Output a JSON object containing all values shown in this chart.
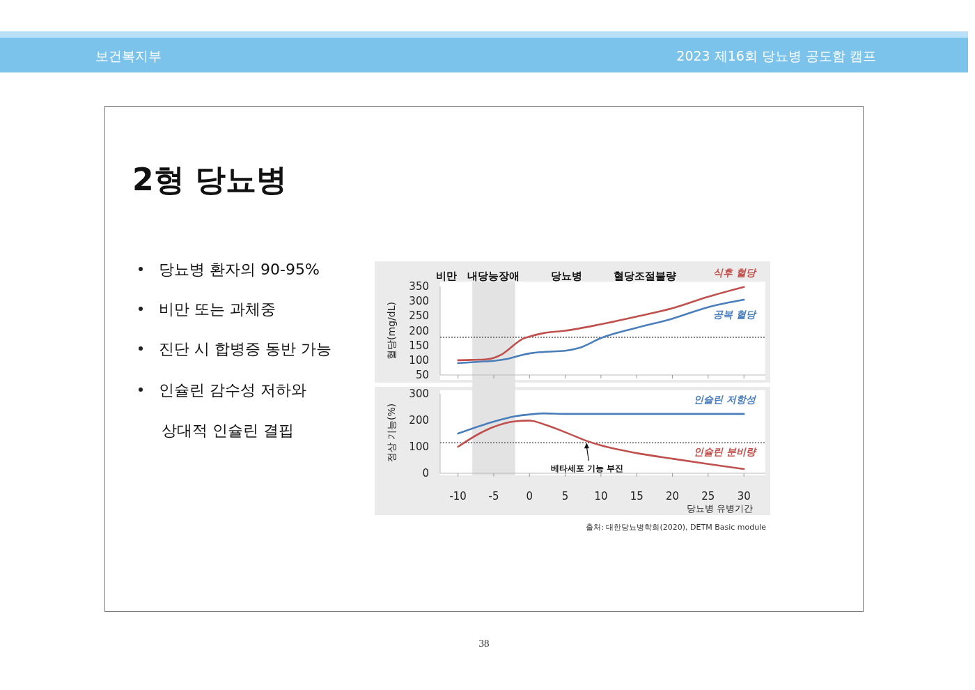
{
  "chart_data": [
    {
      "type": "line",
      "title": "2형 당뇨병",
      "ylabel": "혈당(mg/dL)",
      "xlim": [
        -12.5,
        33
      ],
      "xticks": [
        {
          "value": -10,
          "label": null
        },
        {
          "value": -5,
          "label": null
        },
        {
          "value": 0,
          "label": null
        },
        {
          "value": 5,
          "label": null
        },
        {
          "value": 10,
          "label": null
        },
        {
          "value": 15,
          "label": null
        },
        {
          "value": 20,
          "label": null
        },
        {
          "value": 25,
          "label": null
        },
        {
          "value": 30,
          "label": null
        }
      ],
      "ylim": [
        50,
        350
      ],
      "yticks": [
        50,
        100,
        150,
        200,
        250,
        300,
        350
      ],
      "tick_labels": "y",
      "grid": false,
      "marker": "none",
      "line_style": "solid",
      "annotations": [
        "보건복지부",
        "2023 제16회 당뇨병 공도함 캠프",
        "당뇨병 환자의 90-95%",
        "비만 또는 과체중",
        "진단 시 합병증 동반 가능",
        "인슐린 감수성 저하와",
        "상대적 인슐린 결핍",
        "38",
        "비만",
        "내당능장애",
        "당뇨병",
        "혈당조절불량"
      ],
      "bands": [
        {
          "axis": "x",
          "from": -8,
          "to": -2,
          "color": "#e3e3e3"
        }
      ],
      "ref_lines": [
        {
          "axis": "y",
          "value": 178,
          "line_style": "dotted",
          "color": "#333333"
        }
      ],
      "series": [
        {
          "name": "식후 혈당",
          "color": "#c0504d",
          "x": [
            -10,
            -8,
            -6,
            -5,
            -4,
            -3,
            -2,
            -1,
            0,
            2,
            5,
            10,
            15,
            20,
            25,
            30
          ],
          "values": [
            100,
            101,
            103,
            108,
            118,
            135,
            155,
            172,
            180,
            192,
            200,
            222,
            248,
            276,
            315,
            348
          ]
        },
        {
          "name": "공복 혈당",
          "color": "#4a7ebb",
          "x": [
            -10,
            -7,
            -5,
            -3,
            -1,
            0,
            2,
            5,
            7,
            10,
            15,
            20,
            25,
            30
          ],
          "values": [
            90,
            95,
            98,
            105,
            118,
            123,
            128,
            132,
            142,
            175,
            210,
            241,
            280,
            305
          ]
        }
      ]
    },
    {
      "type": "line",
      "xlabel": "당뇨병 유병기간",
      "ylabel": "정상 기능(%)",
      "xlim": [
        -12.5,
        33
      ],
      "xticks": [
        -10,
        -5,
        0,
        5,
        10,
        15,
        20,
        25,
        30
      ],
      "ylim": [
        0,
        300
      ],
      "yticks": [
        0,
        100,
        200,
        300
      ],
      "grid": false,
      "marker": "none",
      "line_style": "solid",
      "annotations": [
        {
          "text": "베타세포 기능 부진",
          "x": 8,
          "y": 115
        },
        "출처: 대한당뇨병학회(2020),  DETM Basic module"
      ],
      "bands": [
        {
          "axis": "x",
          "from": -8,
          "to": -2,
          "color": "#e3e3e3"
        }
      ],
      "ref_lines": [
        {
          "axis": "y",
          "value": 115,
          "line_style": "dotted",
          "color": "#333333"
        }
      ],
      "series": [
        {
          "name": "인슐린 저항성",
          "color": "#4a7ebb",
          "x": [
            -10,
            -5,
            -2,
            0,
            2,
            5,
            30
          ],
          "values": [
            150,
            195,
            215,
            222,
            226,
            224,
            224
          ]
        },
        {
          "name": "인슐린 분비량",
          "color": "#c0504d",
          "x": [
            -10,
            -7,
            -5,
            -2,
            0,
            2,
            5,
            8,
            10,
            15,
            20,
            25,
            30
          ],
          "values": [
            100,
            150,
            175,
            196,
            199,
            185,
            155,
            122,
            105,
            76,
            55,
            35,
            16
          ]
        }
      ]
    }
  ]
}
